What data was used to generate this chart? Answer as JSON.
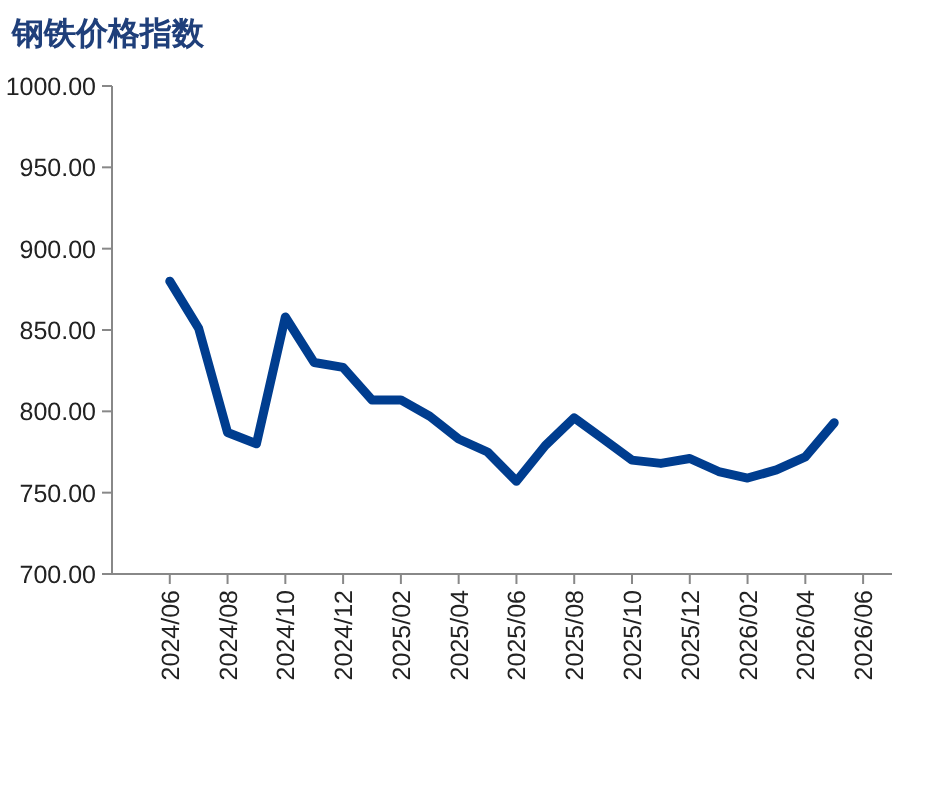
{
  "chart_data": {
    "type": "line",
    "title": "钢铁价格指数",
    "x": [
      "2024-06",
      "2024-07",
      "2024-08",
      "2024-09",
      "2024-10",
      "2024-11",
      "2024-12",
      "2025-01",
      "2025-02",
      "2025-03",
      "2025-04",
      "2025-05",
      "2025-06",
      "2025-07",
      "2025-08",
      "2025-09",
      "2025-10",
      "2025-11",
      "2025-12",
      "2026-01",
      "2026-02",
      "2026-03",
      "2026-04",
      "2026-05"
    ],
    "series": [
      {
        "color": "#003d8f",
        "values": [
          880,
          851,
          787,
          780,
          858,
          830,
          827,
          807,
          807,
          797,
          783,
          775,
          757,
          779,
          796,
          783,
          770,
          768,
          771,
          763,
          759,
          764,
          772,
          793
        ]
      }
    ],
    "xlim": [
      "2024-04",
      "2026-07"
    ],
    "xticks": [
      {
        "value": "2024-06",
        "label": "2024/06"
      },
      {
        "value": "2024-08",
        "label": "2024/08"
      },
      {
        "value": "2024-10",
        "label": "2024/10"
      },
      {
        "value": "2024-12",
        "label": "2024/12"
      },
      {
        "value": "2025-02",
        "label": "2025/02"
      },
      {
        "value": "2025-04",
        "label": "2025/04"
      },
      {
        "value": "2025-06",
        "label": "2025/06"
      },
      {
        "value": "2025-08",
        "label": "2025/08"
      },
      {
        "value": "2025-10",
        "label": "2025/10"
      },
      {
        "value": "2025-12",
        "label": "2025/12"
      },
      {
        "value": "2026-02",
        "label": "2026/02"
      },
      {
        "value": "2026-04",
        "label": "2026/04"
      },
      {
        "value": "2026-06",
        "label": "2026/06"
      }
    ],
    "ylim": [
      700,
      1000
    ],
    "yticks": [
      {
        "value": 700,
        "label": "700.00"
      },
      {
        "value": 750,
        "label": "750.00"
      },
      {
        "value": 800,
        "label": "800.00"
      },
      {
        "value": 850,
        "label": "850.00"
      },
      {
        "value": 900,
        "label": "900.00"
      },
      {
        "value": 950,
        "label": "950.00"
      },
      {
        "value": 1000,
        "label": "1000.00"
      }
    ],
    "grid": false,
    "marker": "none",
    "line_style": "solid"
  }
}
